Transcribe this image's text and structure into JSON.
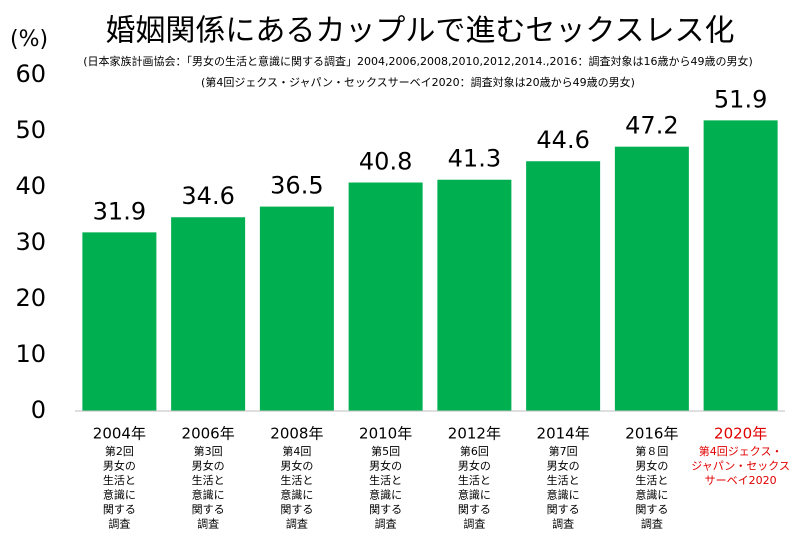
{
  "chart_data": {
    "type": "bar",
    "title": "婚姻関係にあるカップルで進むセックスレス化",
    "subtitle": "(日本家族計画協会：「男女の生活と意識に関する調査」2004,2006,2008,2010,2012,2014.,2016：調査対象は16歳から49歳の男女)",
    "subtitle2": "(第4回ジェクス・ジャパン・セックスサーベイ2020：調査対象は20歳から49歳の男女)",
    "y_label": "(%)",
    "categories": [
      "2004年",
      "2006年",
      "2008年",
      "2010年",
      "2012年",
      "2014年",
      "2016年",
      "2020年"
    ],
    "category_notes": [
      [
        "第2回",
        "男女の",
        "生活と",
        "意識に",
        "関する",
        "調査"
      ],
      [
        "第3回",
        "男女の",
        "生活と",
        "意識に",
        "関する",
        "調査"
      ],
      [
        "第4回",
        "男女の",
        "生活と",
        "意識に",
        "関する",
        "調査"
      ],
      [
        "第5回",
        "男女の",
        "生活と",
        "意識に",
        "関する",
        "調査"
      ],
      [
        "第6回",
        "男女の",
        "生活と",
        "意識に",
        "関する",
        "調査"
      ],
      [
        "第7回",
        "男女の",
        "生活と",
        "意識に",
        "関する",
        "調査"
      ],
      [
        "第８回",
        "男女の",
        "生活と",
        "意識に",
        "関する",
        "調査"
      ],
      [
        "第4回ジェクス・",
        "ジャパン・セックス",
        "サーベイ2020"
      ]
    ],
    "category_colors": [
      "#000000",
      "#000000",
      "#000000",
      "#000000",
      "#000000",
      "#000000",
      "#000000",
      "#e00000"
    ],
    "values": [
      31.9,
      34.6,
      36.5,
      40.8,
      41.3,
      44.6,
      47.2,
      51.9
    ],
    "color": "#00b050",
    "ylim": [
      0,
      60
    ],
    "yticks": [
      0,
      10,
      20,
      30,
      40,
      50,
      60
    ],
    "grid": false
  }
}
